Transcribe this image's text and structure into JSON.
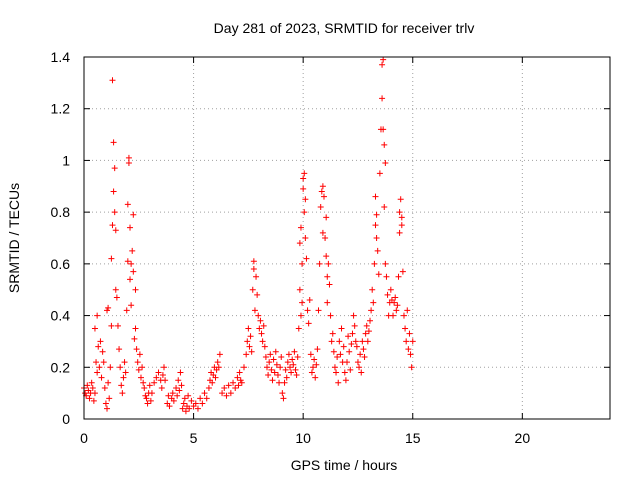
{
  "chart_data": {
    "type": "scatter",
    "title": "Day 281 of 2023, SRMTID for receiver trlv",
    "xlabel": "GPS time / hours",
    "ylabel": "SRMTID / TECUs",
    "xlim": [
      0,
      24
    ],
    "ylim": [
      0,
      1.4
    ],
    "xticks": [
      0,
      5,
      10,
      15,
      20
    ],
    "xtick_labels": [
      "0",
      "5",
      "10",
      "15",
      "20"
    ],
    "yticks": [
      0,
      0.2,
      0.4,
      0.6,
      0.8,
      1.0,
      1.2,
      1.4
    ],
    "ytick_labels": [
      "0",
      "0.2",
      "0.4",
      "0.6",
      "0.8",
      "1",
      "1.2",
      "1.4"
    ],
    "grid": true,
    "marker": "+",
    "color": "#ff0000",
    "series": [
      {
        "name": "trlv",
        "points": [
          [
            0.0,
            0.12
          ],
          [
            0.05,
            0.1
          ],
          [
            0.1,
            0.09
          ],
          [
            0.15,
            0.13
          ],
          [
            0.2,
            0.11
          ],
          [
            0.25,
            0.08
          ],
          [
            0.3,
            0.1
          ],
          [
            0.35,
            0.14
          ],
          [
            0.4,
            0.12
          ],
          [
            0.45,
            0.07
          ],
          [
            0.5,
            0.1
          ],
          [
            0.5,
            0.35
          ],
          [
            0.55,
            0.22
          ],
          [
            0.6,
            0.18
          ],
          [
            0.6,
            0.4
          ],
          [
            0.65,
            0.28
          ],
          [
            0.7,
            0.2
          ],
          [
            0.75,
            0.3
          ],
          [
            0.8,
            0.16
          ],
          [
            0.85,
            0.26
          ],
          [
            0.9,
            0.22
          ],
          [
            0.95,
            0.12
          ],
          [
            1.0,
            0.06
          ],
          [
            1.05,
            0.04
          ],
          [
            1.05,
            0.42
          ],
          [
            1.1,
            0.14
          ],
          [
            1.1,
            0.43
          ],
          [
            1.15,
            0.08
          ],
          [
            1.2,
            0.2
          ],
          [
            1.25,
            0.36
          ],
          [
            1.25,
            0.62
          ],
          [
            1.3,
            0.75
          ],
          [
            1.3,
            1.31
          ],
          [
            1.35,
            1.07
          ],
          [
            1.35,
            0.88
          ],
          [
            1.4,
            0.8
          ],
          [
            1.4,
            0.97
          ],
          [
            1.45,
            0.5
          ],
          [
            1.45,
            0.73
          ],
          [
            1.5,
            0.47
          ],
          [
            1.55,
            0.36
          ],
          [
            1.6,
            0.27
          ],
          [
            1.65,
            0.2
          ],
          [
            1.7,
            0.13
          ],
          [
            1.75,
            0.1
          ],
          [
            1.8,
            0.16
          ],
          [
            1.85,
            0.22
          ],
          [
            1.9,
            0.18
          ],
          [
            1.95,
            0.42
          ],
          [
            2.0,
            0.61
          ],
          [
            2.0,
            0.83
          ],
          [
            2.05,
            0.99
          ],
          [
            2.05,
            1.01
          ],
          [
            2.1,
            0.74
          ],
          [
            2.1,
            0.54
          ],
          [
            2.15,
            0.6
          ],
          [
            2.15,
            0.44
          ],
          [
            2.2,
            0.65
          ],
          [
            2.25,
            0.79
          ],
          [
            2.25,
            0.57
          ],
          [
            2.3,
            0.31
          ],
          [
            2.35,
            0.35
          ],
          [
            2.35,
            0.5
          ],
          [
            2.4,
            0.27
          ],
          [
            2.45,
            0.22
          ],
          [
            2.5,
            0.19
          ],
          [
            2.55,
            0.25
          ],
          [
            2.6,
            0.16
          ],
          [
            2.65,
            0.2
          ],
          [
            2.7,
            0.14
          ],
          [
            2.75,
            0.12
          ],
          [
            2.8,
            0.09
          ],
          [
            2.85,
            0.08
          ],
          [
            2.9,
            0.06
          ],
          [
            2.95,
            0.1
          ],
          [
            3.0,
            0.13
          ],
          [
            3.05,
            0.07
          ],
          [
            3.1,
            0.1
          ],
          [
            3.2,
            0.14
          ],
          [
            3.3,
            0.16
          ],
          [
            3.4,
            0.18
          ],
          [
            3.5,
            0.15
          ],
          [
            3.55,
            0.12
          ],
          [
            3.6,
            0.17
          ],
          [
            3.65,
            0.2
          ],
          [
            3.7,
            0.15
          ],
          [
            3.8,
            0.06
          ],
          [
            3.85,
            0.09
          ],
          [
            3.9,
            0.05
          ],
          [
            4.0,
            0.08
          ],
          [
            4.05,
            0.1
          ],
          [
            4.1,
            0.07
          ],
          [
            4.2,
            0.12
          ],
          [
            4.25,
            0.09
          ],
          [
            4.3,
            0.15
          ],
          [
            4.35,
            0.11
          ],
          [
            4.4,
            0.18
          ],
          [
            4.45,
            0.13
          ],
          [
            4.5,
            0.04
          ],
          [
            4.55,
            0.06
          ],
          [
            4.6,
            0.08
          ],
          [
            4.65,
            0.03
          ],
          [
            4.7,
            0.05
          ],
          [
            4.75,
            0.09
          ],
          [
            4.8,
            0.04
          ],
          [
            4.9,
            0.07
          ],
          [
            5.0,
            0.05
          ],
          [
            5.1,
            0.06
          ],
          [
            5.2,
            0.04
          ],
          [
            5.3,
            0.08
          ],
          [
            5.4,
            0.06
          ],
          [
            5.5,
            0.1
          ],
          [
            5.6,
            0.08
          ],
          [
            5.7,
            0.12
          ],
          [
            5.75,
            0.15
          ],
          [
            5.8,
            0.18
          ],
          [
            5.85,
            0.14
          ],
          [
            5.9,
            0.17
          ],
          [
            5.95,
            0.2
          ],
          [
            6.0,
            0.16
          ],
          [
            6.05,
            0.19
          ],
          [
            6.1,
            0.22
          ],
          [
            6.15,
            0.2
          ],
          [
            6.2,
            0.25
          ],
          [
            6.3,
            0.1
          ],
          [
            6.4,
            0.12
          ],
          [
            6.5,
            0.09
          ],
          [
            6.6,
            0.13
          ],
          [
            6.7,
            0.1
          ],
          [
            6.8,
            0.14
          ],
          [
            6.9,
            0.12
          ],
          [
            7.0,
            0.16
          ],
          [
            7.05,
            0.13
          ],
          [
            7.1,
            0.18
          ],
          [
            7.15,
            0.15
          ],
          [
            7.2,
            0.14
          ],
          [
            7.3,
            0.2
          ],
          [
            7.4,
            0.25
          ],
          [
            7.45,
            0.3
          ],
          [
            7.5,
            0.35
          ],
          [
            7.55,
            0.28
          ],
          [
            7.6,
            0.32
          ],
          [
            7.65,
            0.26
          ],
          [
            7.7,
            0.5
          ],
          [
            7.75,
            0.58
          ],
          [
            7.75,
            0.61
          ],
          [
            7.8,
            0.42
          ],
          [
            7.85,
            0.55
          ],
          [
            7.9,
            0.48
          ],
          [
            7.95,
            0.4
          ],
          [
            8.0,
            0.35
          ],
          [
            8.05,
            0.38
          ],
          [
            8.1,
            0.33
          ],
          [
            8.15,
            0.3
          ],
          [
            8.2,
            0.36
          ],
          [
            8.25,
            0.28
          ],
          [
            8.3,
            0.24
          ],
          [
            8.35,
            0.2
          ],
          [
            8.4,
            0.17
          ],
          [
            8.45,
            0.22
          ],
          [
            8.5,
            0.25
          ],
          [
            8.55,
            0.19
          ],
          [
            8.6,
            0.15
          ],
          [
            8.65,
            0.23
          ],
          [
            8.7,
            0.18
          ],
          [
            8.75,
            0.26
          ],
          [
            8.8,
            0.21
          ],
          [
            8.85,
            0.17
          ],
          [
            8.9,
            0.14
          ],
          [
            8.95,
            0.2
          ],
          [
            9.0,
            0.24
          ],
          [
            9.05,
            0.1
          ],
          [
            9.1,
            0.08
          ],
          [
            9.15,
            0.14
          ],
          [
            9.2,
            0.19
          ],
          [
            9.25,
            0.16
          ],
          [
            9.3,
            0.22
          ],
          [
            9.35,
            0.25
          ],
          [
            9.4,
            0.2
          ],
          [
            9.45,
            0.18
          ],
          [
            9.5,
            0.23
          ],
          [
            9.55,
            0.21
          ],
          [
            9.6,
            0.26
          ],
          [
            9.65,
            0.19
          ],
          [
            9.7,
            0.17
          ],
          [
            9.75,
            0.24
          ],
          [
            9.8,
            0.35
          ],
          [
            9.85,
            0.5
          ],
          [
            9.85,
            0.68
          ],
          [
            9.9,
            0.74
          ],
          [
            9.9,
            0.4
          ],
          [
            9.95,
            0.45
          ],
          [
            9.95,
            0.6
          ],
          [
            10.0,
            0.89
          ],
          [
            10.0,
            0.93
          ],
          [
            10.05,
            0.95
          ],
          [
            10.05,
            0.8
          ],
          [
            10.1,
            0.85
          ],
          [
            10.1,
            0.7
          ],
          [
            10.15,
            0.62
          ],
          [
            10.2,
            0.42
          ],
          [
            10.25,
            0.37
          ],
          [
            10.3,
            0.46
          ],
          [
            10.35,
            0.25
          ],
          [
            10.4,
            0.18
          ],
          [
            10.45,
            0.2
          ],
          [
            10.5,
            0.23
          ],
          [
            10.55,
            0.16
          ],
          [
            10.6,
            0.21
          ],
          [
            10.65,
            0.27
          ],
          [
            10.7,
            0.42
          ],
          [
            10.75,
            0.6
          ],
          [
            10.8,
            0.82
          ],
          [
            10.85,
            0.88
          ],
          [
            10.9,
            0.72
          ],
          [
            10.9,
            0.9
          ],
          [
            10.95,
            0.86
          ],
          [
            11.0,
            0.7
          ],
          [
            11.05,
            0.63
          ],
          [
            11.05,
            0.78
          ],
          [
            11.1,
            0.55
          ],
          [
            11.1,
            0.45
          ],
          [
            11.15,
            0.6
          ],
          [
            11.2,
            0.52
          ],
          [
            11.25,
            0.4
          ],
          [
            11.3,
            0.3
          ],
          [
            11.35,
            0.33
          ],
          [
            11.4,
            0.26
          ],
          [
            11.45,
            0.2
          ],
          [
            11.5,
            0.18
          ],
          [
            11.55,
            0.24
          ],
          [
            11.6,
            0.14
          ],
          [
            11.65,
            0.3
          ],
          [
            11.7,
            0.25
          ],
          [
            11.75,
            0.35
          ],
          [
            11.8,
            0.22
          ],
          [
            11.85,
            0.28
          ],
          [
            11.9,
            0.18
          ],
          [
            11.95,
            0.15
          ],
          [
            12.0,
            0.22
          ],
          [
            12.05,
            0.32
          ],
          [
            12.1,
            0.26
          ],
          [
            12.15,
            0.19
          ],
          [
            12.2,
            0.29
          ],
          [
            12.25,
            0.33
          ],
          [
            12.3,
            0.4
          ],
          [
            12.35,
            0.36
          ],
          [
            12.4,
            0.3
          ],
          [
            12.45,
            0.28
          ],
          [
            12.5,
            0.22
          ],
          [
            12.55,
            0.2
          ],
          [
            12.6,
            0.25
          ],
          [
            12.65,
            0.18
          ],
          [
            12.7,
            0.3
          ],
          [
            12.75,
            0.27
          ],
          [
            12.8,
            0.24
          ],
          [
            12.85,
            0.33
          ],
          [
            12.9,
            0.36
          ],
          [
            12.95,
            0.3
          ],
          [
            13.0,
            0.34
          ],
          [
            13.05,
            0.38
          ],
          [
            13.1,
            0.42
          ],
          [
            13.15,
            0.5
          ],
          [
            13.2,
            0.45
          ],
          [
            13.25,
            0.6
          ],
          [
            13.3,
            0.75
          ],
          [
            13.3,
            0.86
          ],
          [
            13.35,
            0.79
          ],
          [
            13.35,
            0.7
          ],
          [
            13.4,
            0.65
          ],
          [
            13.45,
            0.56
          ],
          [
            13.5,
            0.95
          ],
          [
            13.55,
            1.12
          ],
          [
            13.6,
            1.24
          ],
          [
            13.6,
            1.37
          ],
          [
            13.65,
            1.39
          ],
          [
            13.65,
            1.12
          ],
          [
            13.7,
            1.06
          ],
          [
            13.75,
            0.99
          ],
          [
            13.7,
            0.82
          ],
          [
            13.75,
            0.6
          ],
          [
            13.8,
            0.55
          ],
          [
            13.85,
            0.48
          ],
          [
            13.9,
            0.4
          ],
          [
            13.95,
            0.45
          ],
          [
            14.0,
            0.5
          ],
          [
            14.05,
            0.46
          ],
          [
            14.1,
            0.4
          ],
          [
            14.15,
            0.45
          ],
          [
            14.2,
            0.47
          ],
          [
            14.25,
            0.42
          ],
          [
            14.3,
            0.44
          ],
          [
            14.35,
            0.55
          ],
          [
            14.4,
            0.72
          ],
          [
            14.4,
            0.8
          ],
          [
            14.45,
            0.85
          ],
          [
            14.5,
            0.78
          ],
          [
            14.5,
            0.75
          ],
          [
            14.55,
            0.57
          ],
          [
            14.6,
            0.4
          ],
          [
            14.65,
            0.35
          ],
          [
            14.7,
            0.3
          ],
          [
            14.75,
            0.42
          ],
          [
            14.8,
            0.27
          ],
          [
            14.85,
            0.33
          ],
          [
            14.9,
            0.25
          ],
          [
            14.95,
            0.2
          ],
          [
            15.0,
            0.3
          ]
        ]
      }
    ]
  }
}
